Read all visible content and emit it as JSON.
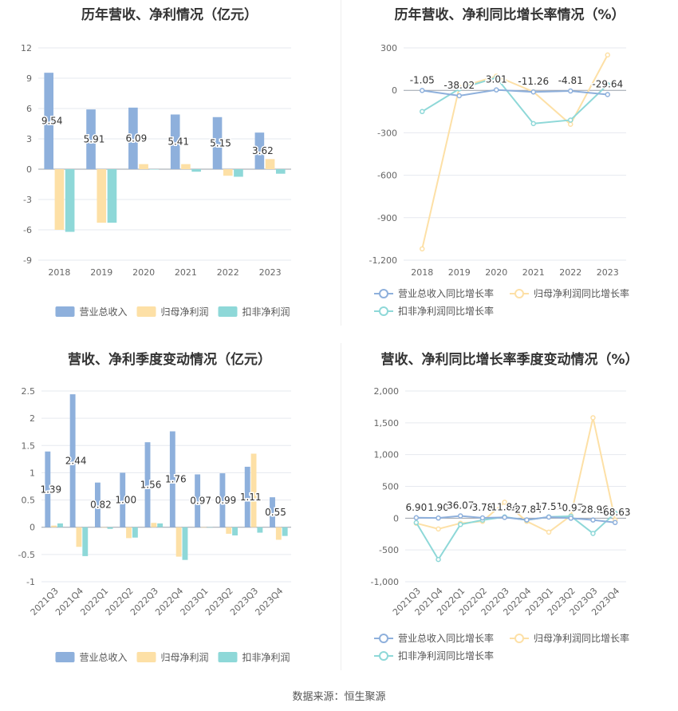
{
  "colors": {
    "revenue": "#8eb0dc",
    "net": "#fde0a6",
    "deducted": "#8ed8d8",
    "grid": "#e6e9ef",
    "axis": "#9aa0aa",
    "tick": "#666666"
  },
  "source": "数据来源：恒生聚源",
  "chart_data": [
    {
      "id": "annual-amount",
      "type": "bar",
      "title": "历年营收、净利情况（亿元）",
      "categories": [
        "2018",
        "2019",
        "2020",
        "2021",
        "2022",
        "2023"
      ],
      "ylim": [
        -9,
        12
      ],
      "yticks": [
        12,
        9,
        6,
        3,
        0,
        -3,
        -6,
        -9
      ],
      "series": [
        {
          "name": "营业总收入",
          "key": "revenue",
          "values": [
            9.54,
            5.91,
            6.09,
            5.41,
            5.15,
            3.62
          ],
          "labels": [
            "9.54",
            "5.91",
            "6.09",
            "5.41",
            "5.15",
            "3.62"
          ]
        },
        {
          "name": "归母净利润",
          "key": "net",
          "values": [
            -6.0,
            -5.3,
            0.5,
            0.5,
            -0.65,
            1.0
          ]
        },
        {
          "name": "扣非净利润",
          "key": "deducted",
          "values": [
            -6.2,
            -5.3,
            0.0,
            -0.25,
            -0.75,
            -0.45
          ]
        }
      ],
      "legend": "bottom",
      "grid": true
    },
    {
      "id": "annual-growth",
      "type": "line",
      "title": "历年营收、净利同比增长率情况（%）",
      "categories": [
        "2018",
        "2019",
        "2020",
        "2021",
        "2022",
        "2023"
      ],
      "ylim": [
        -1200,
        300
      ],
      "yticks": [
        300,
        0,
        -300,
        -600,
        -900,
        -1200
      ],
      "yticklabels": [
        "300",
        "0",
        "-300",
        "-600",
        "-900",
        "-1,200"
      ],
      "series": [
        {
          "name": "营业总收入同比增长率",
          "key": "revenue",
          "values": [
            -1.05,
            -38.02,
            3.01,
            -11.26,
            -4.81,
            -29.64
          ],
          "labels": [
            "-1.05",
            "-38.02",
            "3.01",
            "-11.26",
            "-4.81",
            "-29.64"
          ]
        },
        {
          "name": "归母净利润同比增长率",
          "key": "net",
          "values": [
            -1120,
            20,
            100,
            -10,
            -240,
            250
          ]
        },
        {
          "name": "扣非净利润同比增长率",
          "key": "deducted",
          "values": [
            -150,
            10,
            90,
            -235,
            -210,
            40
          ]
        }
      ],
      "legend": "bottom",
      "grid": true
    },
    {
      "id": "quarterly-amount",
      "type": "bar",
      "title": "营收、净利季度变动情况（亿元）",
      "categories": [
        "2021Q3",
        "2021Q4",
        "2022Q1",
        "2022Q2",
        "2022Q3",
        "2022Q4",
        "2023Q1",
        "2023Q2",
        "2023Q3",
        "2023Q4"
      ],
      "ylim": [
        -1,
        2.5
      ],
      "yticks": [
        2.5,
        2,
        1.5,
        1,
        0.5,
        0,
        -0.5,
        -1
      ],
      "series": [
        {
          "name": "营业总收入",
          "key": "revenue",
          "values": [
            1.39,
            2.44,
            0.82,
            1.0,
            1.56,
            1.76,
            0.97,
            0.99,
            1.11,
            0.55
          ],
          "labels": [
            "1.39",
            "2.44",
            "0.82",
            "1.00",
            "1.56",
            "1.76",
            "0.97",
            "0.99",
            "1.11",
            "0.55"
          ]
        },
        {
          "name": "归母净利润",
          "key": "net",
          "values": [
            0.03,
            -0.36,
            0.0,
            -0.2,
            0.08,
            -0.54,
            0.0,
            -0.12,
            1.35,
            -0.23
          ]
        },
        {
          "name": "扣非净利润",
          "key": "deducted",
          "values": [
            0.07,
            -0.53,
            -0.03,
            -0.19,
            0.07,
            -0.6,
            0.0,
            -0.15,
            -0.1,
            -0.16
          ]
        }
      ],
      "legend": "bottom",
      "grid": true
    },
    {
      "id": "quarterly-growth",
      "type": "line",
      "title": "营收、净利同比增长率季度变动情况（%）",
      "categories": [
        "2021Q3",
        "2021Q4",
        "2022Q1",
        "2022Q2",
        "2022Q3",
        "2022Q4",
        "2023Q1",
        "2023Q2",
        "2023Q3",
        "2023Q4"
      ],
      "ylim": [
        -1000,
        2000
      ],
      "yticks": [
        2000,
        1500,
        1000,
        500,
        0,
        -500,
        -1000
      ],
      "yticklabels": [
        "2,000",
        "1,500",
        "1,000",
        "500",
        "0",
        "-500",
        "-1,000"
      ],
      "series": [
        {
          "name": "营业总收入同比增长率",
          "key": "revenue",
          "values": [
            6.9,
            1.9,
            36.07,
            3.78,
            11.84,
            -27.84,
            17.51,
            -0.97,
            -28.96,
            -68.63
          ],
          "labels": [
            "6.90",
            "1.90",
            "36.07",
            "3.78",
            "11.84",
            "-27.84",
            "17.51",
            "-0.97",
            "-28.96",
            "-68.63"
          ]
        },
        {
          "name": "归母净利润同比增长率",
          "key": "net",
          "values": [
            -80,
            -170,
            -80,
            -50,
            250,
            -50,
            -220,
            40,
            1580,
            -30
          ]
        },
        {
          "name": "扣非净利润同比增长率",
          "key": "deducted",
          "values": [
            -70,
            -650,
            -100,
            -30,
            20,
            -30,
            20,
            30,
            -240,
            80
          ]
        }
      ],
      "legend": "bottom",
      "grid": true
    }
  ]
}
